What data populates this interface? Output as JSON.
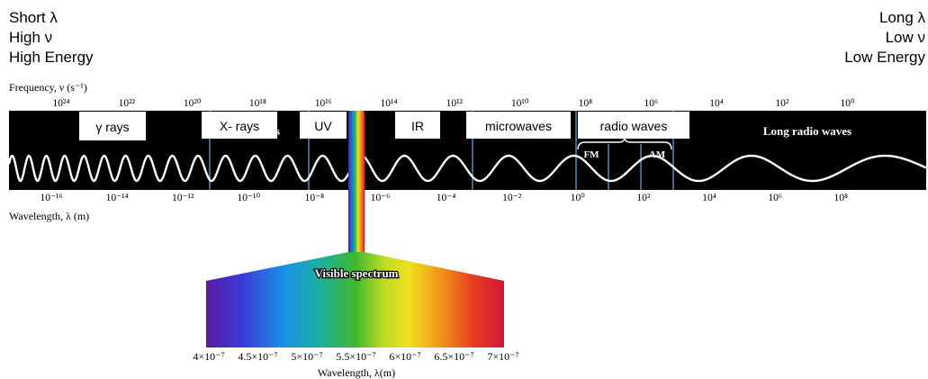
{
  "left_notes": [
    "Short λ",
    "High ν",
    "High Energy"
  ],
  "right_notes": [
    "Long λ",
    "Low ν",
    "Low Energy"
  ],
  "frequency_axis": {
    "label": "Frequency, ν (s⁻¹)",
    "ticks": [
      "10²⁴",
      "10²²",
      "10²⁰",
      "10¹⁸",
      "10¹⁶",
      "10¹⁴",
      "10¹²",
      "10¹⁰",
      "10⁸",
      "10⁶",
      "10⁴",
      "10²",
      "10⁰"
    ]
  },
  "wavelength_axis": {
    "label": "Wavelength, λ (m)",
    "ticks": [
      "10⁻¹⁶",
      "10⁻¹⁴",
      "10⁻¹²",
      "10⁻¹⁰",
      "10⁻⁸",
      "10⁻⁶",
      "10⁻⁴",
      "10⁻²",
      "10⁰",
      "10²",
      "10⁴",
      "10⁶",
      "10⁸"
    ]
  },
  "regions": [
    "γ rays",
    "X- rays",
    "UV",
    "IR",
    "microwaves",
    "radio waves"
  ],
  "long_radio_label": "Long radio waves",
  "partial_hidden_label": "s",
  "sub_bands": [
    "FM",
    "AM"
  ],
  "visible": {
    "title": "Visible spectrum",
    "axis_label": "Wavelength, λ(m)",
    "ticks": [
      "4×10⁻⁷",
      "4.5×10⁻⁷",
      "5×10⁻⁷",
      "5.5×10⁻⁷",
      "6×10⁻⁷",
      "6.5×10⁻⁷",
      "7×10⁻⁷"
    ]
  },
  "colors": {
    "band_background": "#000000",
    "wave": "#ffffff",
    "divider": "#4a84b4",
    "violet": "#6a1aa8",
    "blue": "#1a7fe0",
    "green": "#28b040",
    "yellow": "#f0e020",
    "orange": "#f08a18",
    "red": "#d81830"
  }
}
